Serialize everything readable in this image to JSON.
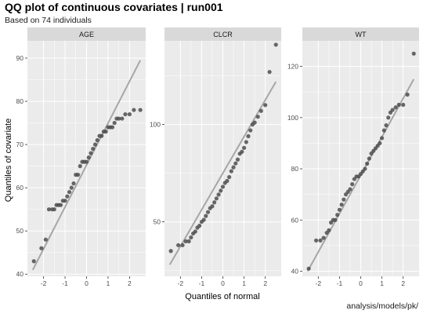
{
  "title": "QQ plot of continuous covariates | run001",
  "subtitle": "Based on 74 individuals",
  "caption": "analysis/models/pk/",
  "colors": {
    "panel_bg": "#ebebeb",
    "strip_bg": "#d9d9d9",
    "grid": "#ffffff",
    "points": "#4d4d4d",
    "line": "#a6a6a6"
  },
  "chart_data": {
    "type": "scatter",
    "title": "QQ plot of continuous covariates | run001",
    "subtitle": "Based on 74 individuals",
    "xlabel": "Quantiles of normal",
    "ylabel": "Quantiles of covariate",
    "grid": true,
    "facets": [
      {
        "name": "AGE",
        "xlim": [
          -2.75,
          2.75
        ],
        "ylim": [
          39.5,
          94
        ],
        "x_ticks": [
          "-2",
          "-1",
          "0",
          "1",
          "2"
        ],
        "x_tick_values": [
          -2,
          -1,
          0,
          1,
          2
        ],
        "y_ticks": [
          "40",
          "50",
          "60",
          "70",
          "80",
          "90"
        ],
        "y_tick_values": [
          40,
          50,
          60,
          70,
          80,
          90
        ],
        "line": {
          "x": [
            -2.5,
            2.5
          ],
          "y": [
            41,
            89.5
          ]
        },
        "x": [
          -2.45,
          -2.1,
          -1.9,
          -1.75,
          -1.6,
          -1.5,
          -1.4,
          -1.3,
          -1.2,
          -1.1,
          -1.0,
          -0.9,
          -0.8,
          -0.7,
          -0.6,
          -0.5,
          -0.4,
          -0.3,
          -0.2,
          -0.1,
          0.0,
          0.1,
          0.2,
          0.3,
          0.4,
          0.5,
          0.6,
          0.7,
          0.8,
          0.9,
          1.0,
          1.1,
          1.2,
          1.3,
          1.4,
          1.5,
          1.65,
          1.8,
          2.0,
          2.2,
          2.5
        ],
        "y": [
          43,
          46,
          48,
          55,
          55,
          55,
          56,
          56,
          56,
          57,
          57,
          58,
          59,
          60,
          61,
          63,
          63,
          65,
          66,
          66,
          66,
          67,
          68,
          69,
          70,
          71,
          72,
          72,
          73,
          73,
          74,
          74,
          74,
          75,
          76,
          76,
          76,
          77,
          77,
          78,
          78
        ]
      },
      {
        "name": "CLCR",
        "xlim": [
          -2.75,
          2.75
        ],
        "ylim": [
          22,
          143
        ],
        "x_ticks": [
          "-2",
          "-1",
          "0",
          "1",
          "2"
        ],
        "x_tick_values": [
          -2,
          -1,
          0,
          1,
          2
        ],
        "y_ticks": [
          "50",
          "100"
        ],
        "y_tick_values": [
          50,
          100
        ],
        "line": {
          "x": [
            -2.5,
            2.5
          ],
          "y": [
            28,
            122
          ]
        },
        "x": [
          -2.45,
          -2.1,
          -1.9,
          -1.75,
          -1.6,
          -1.5,
          -1.4,
          -1.3,
          -1.2,
          -1.1,
          -1.0,
          -0.9,
          -0.8,
          -0.7,
          -0.6,
          -0.5,
          -0.4,
          -0.3,
          -0.2,
          -0.1,
          0.0,
          0.1,
          0.2,
          0.3,
          0.4,
          0.5,
          0.6,
          0.7,
          0.8,
          0.9,
          1.0,
          1.1,
          1.2,
          1.3,
          1.4,
          1.5,
          1.65,
          1.8,
          2.0,
          2.2,
          2.5
        ],
        "y": [
          35,
          38,
          38,
          40,
          40,
          42,
          44,
          45,
          47,
          48,
          50,
          51,
          53,
          55,
          57,
          58,
          60,
          62,
          64,
          66,
          68,
          70,
          71,
          73,
          76,
          78,
          80,
          82,
          85,
          86,
          88,
          91,
          94,
          97,
          100,
          101,
          104,
          107,
          110,
          127,
          141
        ]
      },
      {
        "name": "WT",
        "xlim": [
          -2.75,
          2.75
        ],
        "ylim": [
          38,
          130
        ],
        "x_ticks": [
          "-2",
          "-1",
          "0",
          "1",
          "2"
        ],
        "x_tick_values": [
          -2,
          -1,
          0,
          1,
          2
        ],
        "y_ticks": [
          "40",
          "60",
          "80",
          "100",
          "120"
        ],
        "y_tick_values": [
          40,
          60,
          80,
          100,
          120
        ],
        "line": {
          "x": [
            -2.5,
            2.5
          ],
          "y": [
            40,
            115
          ]
        },
        "x": [
          -2.45,
          -2.1,
          -1.9,
          -1.75,
          -1.6,
          -1.5,
          -1.4,
          -1.3,
          -1.2,
          -1.1,
          -1.0,
          -0.9,
          -0.8,
          -0.7,
          -0.6,
          -0.5,
          -0.4,
          -0.3,
          -0.2,
          -0.1,
          0.0,
          0.1,
          0.2,
          0.3,
          0.4,
          0.5,
          0.6,
          0.7,
          0.8,
          0.9,
          1.0,
          1.1,
          1.2,
          1.3,
          1.4,
          1.5,
          1.65,
          1.8,
          2.0,
          2.2,
          2.5
        ],
        "y": [
          41,
          52,
          52,
          53,
          55,
          56,
          59,
          60,
          60,
          62,
          64,
          66,
          68,
          70,
          71,
          72,
          74,
          76,
          77,
          77,
          78,
          79,
          80,
          82,
          84,
          86,
          87,
          88,
          89,
          90,
          92,
          95,
          97,
          100,
          102,
          103,
          104,
          105,
          105,
          109,
          125
        ]
      }
    ]
  }
}
